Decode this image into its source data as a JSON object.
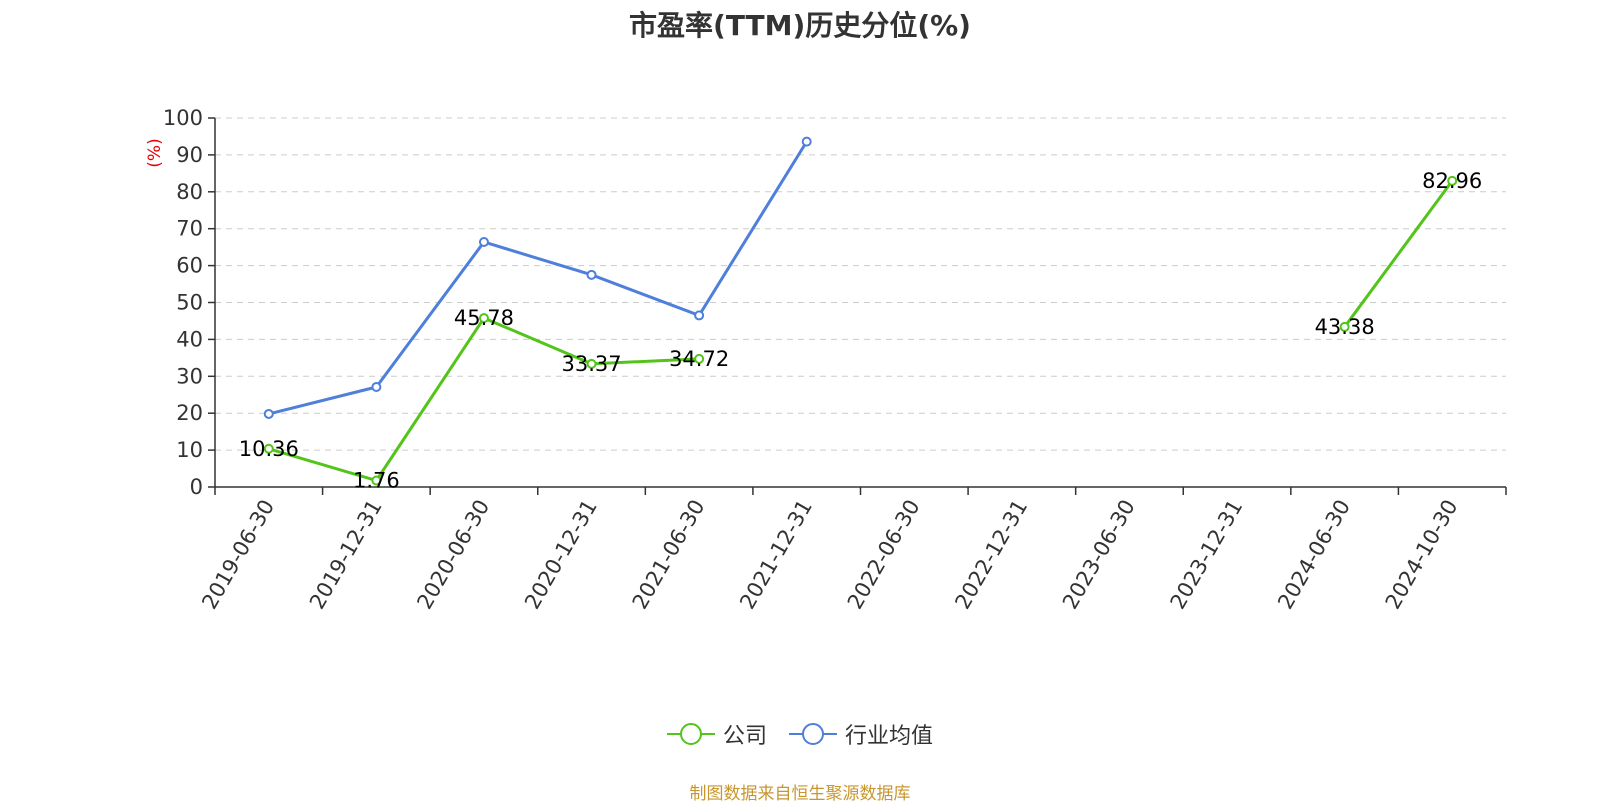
{
  "chart_data": {
    "type": "line",
    "title": "市盈率(TTM)历史分位(%)",
    "ylabel": "(%)",
    "ylim": [
      0,
      100
    ],
    "yticks": [
      0,
      10,
      20,
      30,
      40,
      50,
      60,
      70,
      80,
      90,
      100
    ],
    "categories": [
      "2019-06-30",
      "2019-12-31",
      "2020-06-30",
      "2020-12-31",
      "2021-06-30",
      "2021-12-31",
      "2022-06-30",
      "2022-12-31",
      "2023-06-30",
      "2023-12-31",
      "2024-06-30",
      "2024-10-30"
    ],
    "series": [
      {
        "name": "公司",
        "color": "#52c41a",
        "show_labels": true,
        "values": [
          10.36,
          1.76,
          45.78,
          33.37,
          34.72,
          null,
          null,
          null,
          null,
          null,
          43.38,
          82.96
        ]
      },
      {
        "name": "行业均值",
        "color": "#4e7fdb",
        "show_labels": false,
        "values": [
          19.8,
          27.1,
          66.4,
          57.5,
          46.5,
          93.6,
          null,
          null,
          null,
          null,
          null,
          null
        ]
      }
    ],
    "grid": "horizontal-dashed",
    "legend_position": "bottom-center",
    "source": "制图数据来自恒生聚源数据库"
  }
}
